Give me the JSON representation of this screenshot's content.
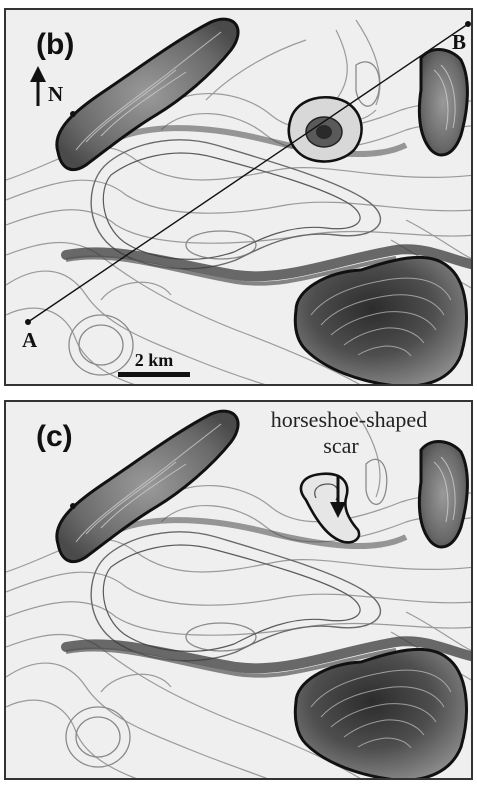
{
  "panels": [
    {
      "letter": "(b)",
      "north_label": "N",
      "point_a": "A",
      "point_b": "B",
      "scale_label": "2 km"
    },
    {
      "letter": "(c)",
      "annotation_line1": "horseshoe-shaped",
      "annotation_line2": "scar"
    }
  ],
  "colors": {
    "background": "#efefef",
    "contour_light": "#9a9a9a",
    "contour_dark": "#2a2a2a",
    "relief_dark": "#3b3b3b"
  },
  "icons": [
    "north-arrow-icon",
    "scale-bar-icon",
    "pointer-arrow-icon"
  ]
}
